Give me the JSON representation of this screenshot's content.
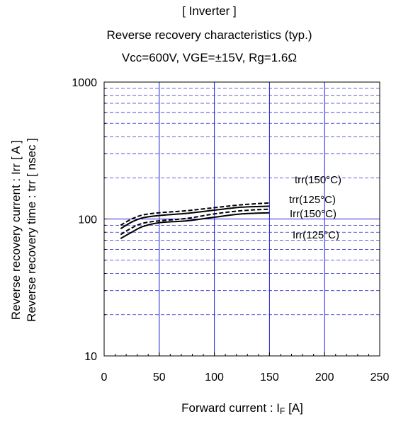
{
  "chart_data": {
    "type": "line",
    "title_lines": [
      "[ Inverter ]",
      "Reverse recovery characteristics  (typ.)",
      "Vcc=600V,   VGE=±15V,   Rg=1.6Ω"
    ],
    "xlabel_main": "Forward current : I",
    "xlabel_sub": "F",
    "xlabel_unit": " [A]",
    "ylabel_lines": [
      "Reverse recovery current  :  Irr  [ A ]",
      "Reverse recovery time  :  trr  [ nsec ]"
    ],
    "xlim": [
      0,
      250
    ],
    "ylim": [
      10,
      1000
    ],
    "yscale": "log",
    "x_ticks": [
      0,
      50,
      100,
      150,
      200,
      250
    ],
    "x_tick_labels": [
      "0",
      "50",
      "100",
      "150",
      "200",
      "250"
    ],
    "y_ticks": [
      10,
      100,
      1000
    ],
    "y_tick_labels": [
      "10",
      "100",
      "1000"
    ],
    "grid": true,
    "series": [
      {
        "name": "trr(150°C)",
        "style": "dashed",
        "x": [
          15,
          25,
          35,
          50,
          75,
          100,
          125,
          150
        ],
        "y": [
          90,
          100,
          107,
          111,
          115,
          121,
          127,
          131
        ]
      },
      {
        "name": "trr(125°C)",
        "style": "solid",
        "x": [
          15,
          25,
          35,
          50,
          75,
          100,
          125,
          150
        ],
        "y": [
          85,
          95,
          102,
          106,
          110,
          116,
          122,
          124
        ]
      },
      {
        "name": "Irr(150°C)",
        "style": "dashed",
        "x": [
          15,
          25,
          35,
          50,
          75,
          100,
          125,
          150
        ],
        "y": [
          77,
          86,
          93,
          97,
          101,
          109,
          115,
          118
        ]
      },
      {
        "name": "Irr(125°C)",
        "style": "solid",
        "x": [
          15,
          25,
          35,
          50,
          75,
          100,
          125,
          150
        ],
        "y": [
          72,
          80,
          88,
          94,
          97,
          103,
          109,
          111
        ]
      }
    ],
    "annotation_colors": {
      "major_grid": "#1a1adc",
      "minor_grid": "#2c2cd0",
      "curves": "#000000"
    }
  }
}
